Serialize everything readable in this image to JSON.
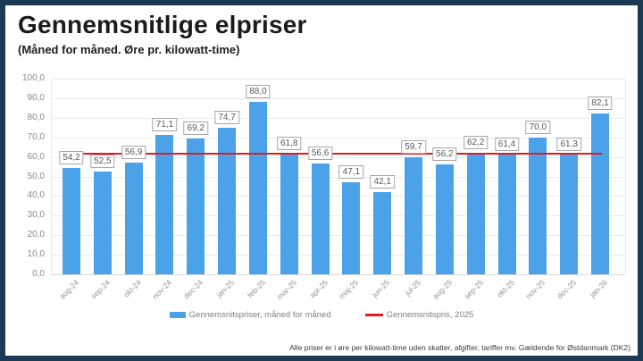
{
  "title": "Gennemsnitlige elpriser",
  "subtitle": "(Måned for måned. Øre pr. kilowatt-time)",
  "footnote": "Alle priser er i øre per kilowatt-time uden skatter, afgifter, tariffer mv. Gældende for Østdanmark (DK2)",
  "colors": {
    "bar": "#4ba2e8",
    "line": "#e11b22",
    "border": "#1d3a55",
    "grid": "#ebebeb"
  },
  "legend": {
    "bars_label": "Gennemsnitspriser, måned for måned",
    "line_label": "Gennemsnitspris, 2025"
  },
  "chart_data": {
    "type": "bar",
    "title": "Gennemsnitlige elpriser (Måned for måned. Øre pr. kilowatt-time)",
    "categories": [
      "aug-24",
      "sep-24",
      "okt-24",
      "nov-24",
      "dec-24",
      "jan-25",
      "feb-25",
      "mar-25",
      "apr-25",
      "maj-25",
      "jun-25",
      "jul-25",
      "aug-25",
      "sep-25",
      "okt-25",
      "nov-25",
      "dec-25",
      "jan-26"
    ],
    "series": [
      {
        "name": "Gennemsnitspriser, måned for måned",
        "type": "bar",
        "values": [
          54.2,
          52.5,
          56.9,
          71.1,
          69.2,
          74.7,
          88.0,
          61.8,
          56.6,
          47.1,
          42.1,
          59.7,
          56.2,
          62.2,
          61.4,
          70.0,
          61.3,
          82.1
        ]
      },
      {
        "name": "Gennemsnitspris, 2025",
        "type": "line",
        "value": 61.8
      }
    ],
    "xlabel": "",
    "ylabel": "",
    "ylim": [
      0,
      100
    ],
    "ytick_step": 10,
    "ytick_labels": [
      "100,0",
      "90,0",
      "80,0",
      "70,0",
      "60,0",
      "50,0",
      "40,0",
      "30,0",
      "20,0",
      "10,0",
      "0,0"
    ],
    "grid": true,
    "legend_position": "bottom",
    "decimal_separator": ","
  }
}
